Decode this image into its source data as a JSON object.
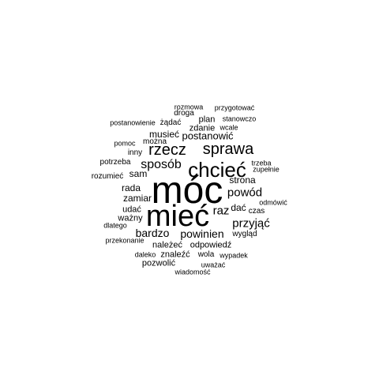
{
  "colors": {
    "background": "#ffffff",
    "text": "#000000"
  },
  "words": [
    {
      "text": "móc",
      "weight": 48
    },
    {
      "text": "mieć",
      "weight": 38
    },
    {
      "text": "chcieć",
      "weight": 26
    },
    {
      "text": "rzecz",
      "weight": 20
    },
    {
      "text": "sprawa",
      "weight": 20
    },
    {
      "text": "sposób",
      "weight": 16
    },
    {
      "text": "powód",
      "weight": 15
    },
    {
      "text": "raz",
      "weight": 15
    },
    {
      "text": "przyjąć",
      "weight": 15
    },
    {
      "text": "bardzo",
      "weight": 14
    },
    {
      "text": "powinien",
      "weight": 14
    },
    {
      "text": "postanowić",
      "weight": 13
    },
    {
      "text": "musieć",
      "weight": 12
    },
    {
      "text": "sam",
      "weight": 12
    },
    {
      "text": "strona",
      "weight": 12
    },
    {
      "text": "rada",
      "weight": 12
    },
    {
      "text": "zamiar",
      "weight": 12
    },
    {
      "text": "dać",
      "weight": 12
    },
    {
      "text": "udać",
      "weight": 11
    },
    {
      "text": "ważny",
      "weight": 11
    },
    {
      "text": "należeć",
      "weight": 11
    },
    {
      "text": "odpowiedź",
      "weight": 11
    },
    {
      "text": "znaleźć",
      "weight": 11
    },
    {
      "text": "pozwolić",
      "weight": 11
    },
    {
      "text": "plan",
      "weight": 11
    },
    {
      "text": "zdanie",
      "weight": 11
    },
    {
      "text": "żądać",
      "weight": 10
    },
    {
      "text": "droga",
      "weight": 10
    },
    {
      "text": "można",
      "weight": 10
    },
    {
      "text": "wola",
      "weight": 10
    },
    {
      "text": "wygląd",
      "weight": 10
    },
    {
      "text": "czas",
      "weight": 10
    },
    {
      "text": "potrzeba",
      "weight": 10
    },
    {
      "text": "inny",
      "weight": 10
    },
    {
      "text": "rozumieć",
      "weight": 10
    },
    {
      "text": "pomoc",
      "weight": 9
    },
    {
      "text": "wcale",
      "weight": 9
    },
    {
      "text": "rozmowa",
      "weight": 9
    },
    {
      "text": "przygotować",
      "weight": 9
    },
    {
      "text": "stanowczo",
      "weight": 9
    },
    {
      "text": "postanowienie",
      "weight": 9
    },
    {
      "text": "trzeba",
      "weight": 9
    },
    {
      "text": "zupełnie",
      "weight": 9
    },
    {
      "text": "odmówić",
      "weight": 9
    },
    {
      "text": "dlatego",
      "weight": 9
    },
    {
      "text": "przekonanie",
      "weight": 9
    },
    {
      "text": "daleko",
      "weight": 9
    },
    {
      "text": "wypadek",
      "weight": 9
    },
    {
      "text": "uważać",
      "weight": 9
    },
    {
      "text": "wiadomość",
      "weight": 9
    }
  ]
}
